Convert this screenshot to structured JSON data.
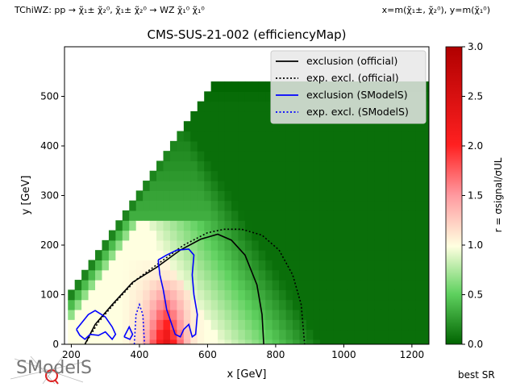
{
  "header": {
    "left": "TChiWZ: pp → χ̃₁± χ̃₂⁰, χ̃₁± χ̃₂⁰ → WZ χ̃₁⁰ χ̃₁⁰",
    "right": "x=m(χ̃₁±, χ̃₂⁰), y=m(χ̃₁⁰)"
  },
  "footer": {
    "best_sr": "best SR",
    "logo": "SModelS"
  },
  "colors": {
    "green": "#006400",
    "white": "#ffffe0",
    "red": "#c00000",
    "official": "#000000",
    "smodels": "#0000ff"
  },
  "chart_data": {
    "type": "heatmap",
    "title": "CMS-SUS-21-002 (efficiencyMap)",
    "xlabel": "x [GeV]",
    "ylabel": "y [GeV]",
    "xlim": [
      180,
      1250
    ],
    "ylim": [
      0,
      600
    ],
    "xticks": [
      "200",
      "400",
      "600",
      "800",
      "1000",
      "1200"
    ],
    "yticks": [
      "0",
      "100",
      "200",
      "300",
      "400",
      "500"
    ],
    "colorbar": {
      "label": "r = σsignal/σUL",
      "range": [
        0,
        3
      ],
      "ticks": [
        "0.0",
        "0.5",
        "1.0",
        "1.5",
        "2.0",
        "2.5",
        "3.0"
      ]
    },
    "legend": {
      "position": "top-right",
      "entries": [
        {
          "label": "exclusion (official)",
          "color": "#000000",
          "style": "solid"
        },
        {
          "label": "exp. excl. (official)",
          "color": "#000000",
          "style": "dotted"
        },
        {
          "label": "exclusion (SModelS)",
          "color": "#0000ff",
          "style": "solid"
        },
        {
          "label": "exp. excl. (SModelS)",
          "color": "#0000ff",
          "style": "dotted"
        }
      ]
    },
    "curves": {
      "exclusion_official": [
        [
          240,
          0
        ],
        [
          270,
          40
        ],
        [
          320,
          80
        ],
        [
          380,
          125
        ],
        [
          450,
          155
        ],
        [
          520,
          190
        ],
        [
          580,
          212
        ],
        [
          630,
          222
        ],
        [
          670,
          210
        ],
        [
          710,
          180
        ],
        [
          745,
          120
        ],
        [
          760,
          60
        ],
        [
          765,
          0
        ]
      ],
      "expected_official": [
        [
          240,
          0
        ],
        [
          280,
          45
        ],
        [
          330,
          85
        ],
        [
          390,
          130
        ],
        [
          460,
          165
        ],
        [
          530,
          200
        ],
        [
          600,
          225
        ],
        [
          650,
          232
        ],
        [
          700,
          232
        ],
        [
          760,
          220
        ],
        [
          810,
          190
        ],
        [
          850,
          140
        ],
        [
          875,
          80
        ],
        [
          885,
          0
        ]
      ],
      "exclusion_smodels": [
        [
          [
            215,
            30
          ],
          [
            250,
            60
          ],
          [
            270,
            68
          ],
          [
            300,
            55
          ],
          [
            320,
            35
          ],
          [
            330,
            20
          ],
          [
            320,
            10
          ],
          [
            300,
            25
          ],
          [
            280,
            18
          ],
          [
            255,
            20
          ],
          [
            240,
            10
          ],
          [
            225,
            18
          ],
          [
            215,
            30
          ]
        ],
        [
          [
            455,
            170
          ],
          [
            480,
            180
          ],
          [
            510,
            190
          ],
          [
            545,
            192
          ],
          [
            560,
            180
          ],
          [
            555,
            140
          ],
          [
            560,
            100
          ],
          [
            570,
            60
          ],
          [
            565,
            20
          ],
          [
            555,
            15
          ],
          [
            545,
            40
          ],
          [
            530,
            30
          ],
          [
            520,
            15
          ],
          [
            505,
            20
          ],
          [
            495,
            40
          ],
          [
            480,
            70
          ],
          [
            470,
            110
          ],
          [
            460,
            140
          ],
          [
            455,
            170
          ]
        ],
        [
          [
            355,
            15
          ],
          [
            370,
            35
          ],
          [
            380,
            20
          ],
          [
            372,
            10
          ],
          [
            355,
            15
          ]
        ]
      ],
      "expected_smodels": [
        [
          385,
          0
        ],
        [
          390,
          60
        ],
        [
          400,
          80
        ],
        [
          410,
          60
        ],
        [
          415,
          0
        ]
      ]
    },
    "description_note": ""
  }
}
